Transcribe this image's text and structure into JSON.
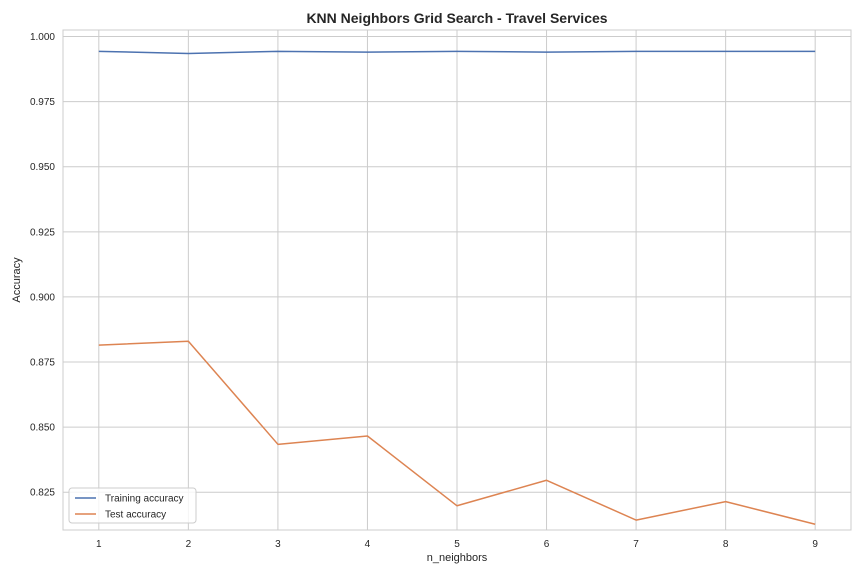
{
  "chart_data": {
    "type": "line",
    "title": "KNN Neighbors Grid Search - Travel Services",
    "xlabel": "n_neighbors",
    "ylabel": "Accuracy",
    "x": [
      1,
      2,
      3,
      4,
      5,
      6,
      7,
      8,
      9
    ],
    "xlim": [
      0.6,
      9.4
    ],
    "ylim": [
      0.8105,
      1.0025
    ],
    "yticks": [
      0.825,
      0.85,
      0.875,
      0.9,
      0.925,
      0.95,
      0.975,
      1.0
    ],
    "ytick_labels": [
      "0.825",
      "0.850",
      "0.875",
      "0.900",
      "0.925",
      "0.950",
      "0.975",
      "1.000"
    ],
    "grid": true,
    "legend_position": "lower-left",
    "series": [
      {
        "name": "Training accuracy",
        "color": "#4c72b0",
        "values": [
          0.9943,
          0.9935,
          0.9943,
          0.994,
          0.9943,
          0.994,
          0.9943,
          0.9943,
          0.9943
        ]
      },
      {
        "name": "Test accuracy",
        "color": "#dd8452",
        "values": [
          0.8815,
          0.883,
          0.8434,
          0.8466,
          0.8198,
          0.8296,
          0.8143,
          0.8214,
          0.8127
        ]
      }
    ]
  }
}
